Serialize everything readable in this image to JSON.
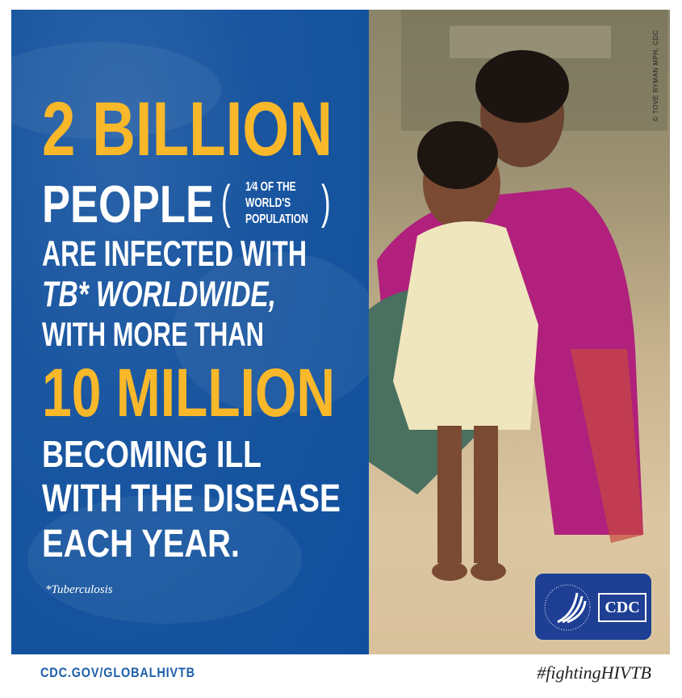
{
  "headline": {
    "number_line": "2 BILLION",
    "people": "PEOPLE",
    "parenthetical": [
      "1⁄4 OF THE",
      "WORLD'S",
      "POPULATION"
    ],
    "line3": "ARE INFECTED WITH",
    "line4": "TB* WORLDWIDE,",
    "line5": "WITH MORE THAN",
    "number_line2": "10 MILLION",
    "line7": "BECOMING ILL",
    "line8": "WITH THE DISEASE",
    "line9": "EACH YEAR."
  },
  "footnote": "*Tuberculosis",
  "photo_credit": "© TOVE RYMAN MPH, CDC",
  "logo": {
    "text": "CDC"
  },
  "footer": {
    "url": "CDC.GOV/GLOBALHIVTB",
    "hashtag": "#fightingHIVTB"
  },
  "colors": {
    "panel_blue": "#1a56a0",
    "accent_yellow": "#f9b82a",
    "text_white": "#ffffff"
  }
}
